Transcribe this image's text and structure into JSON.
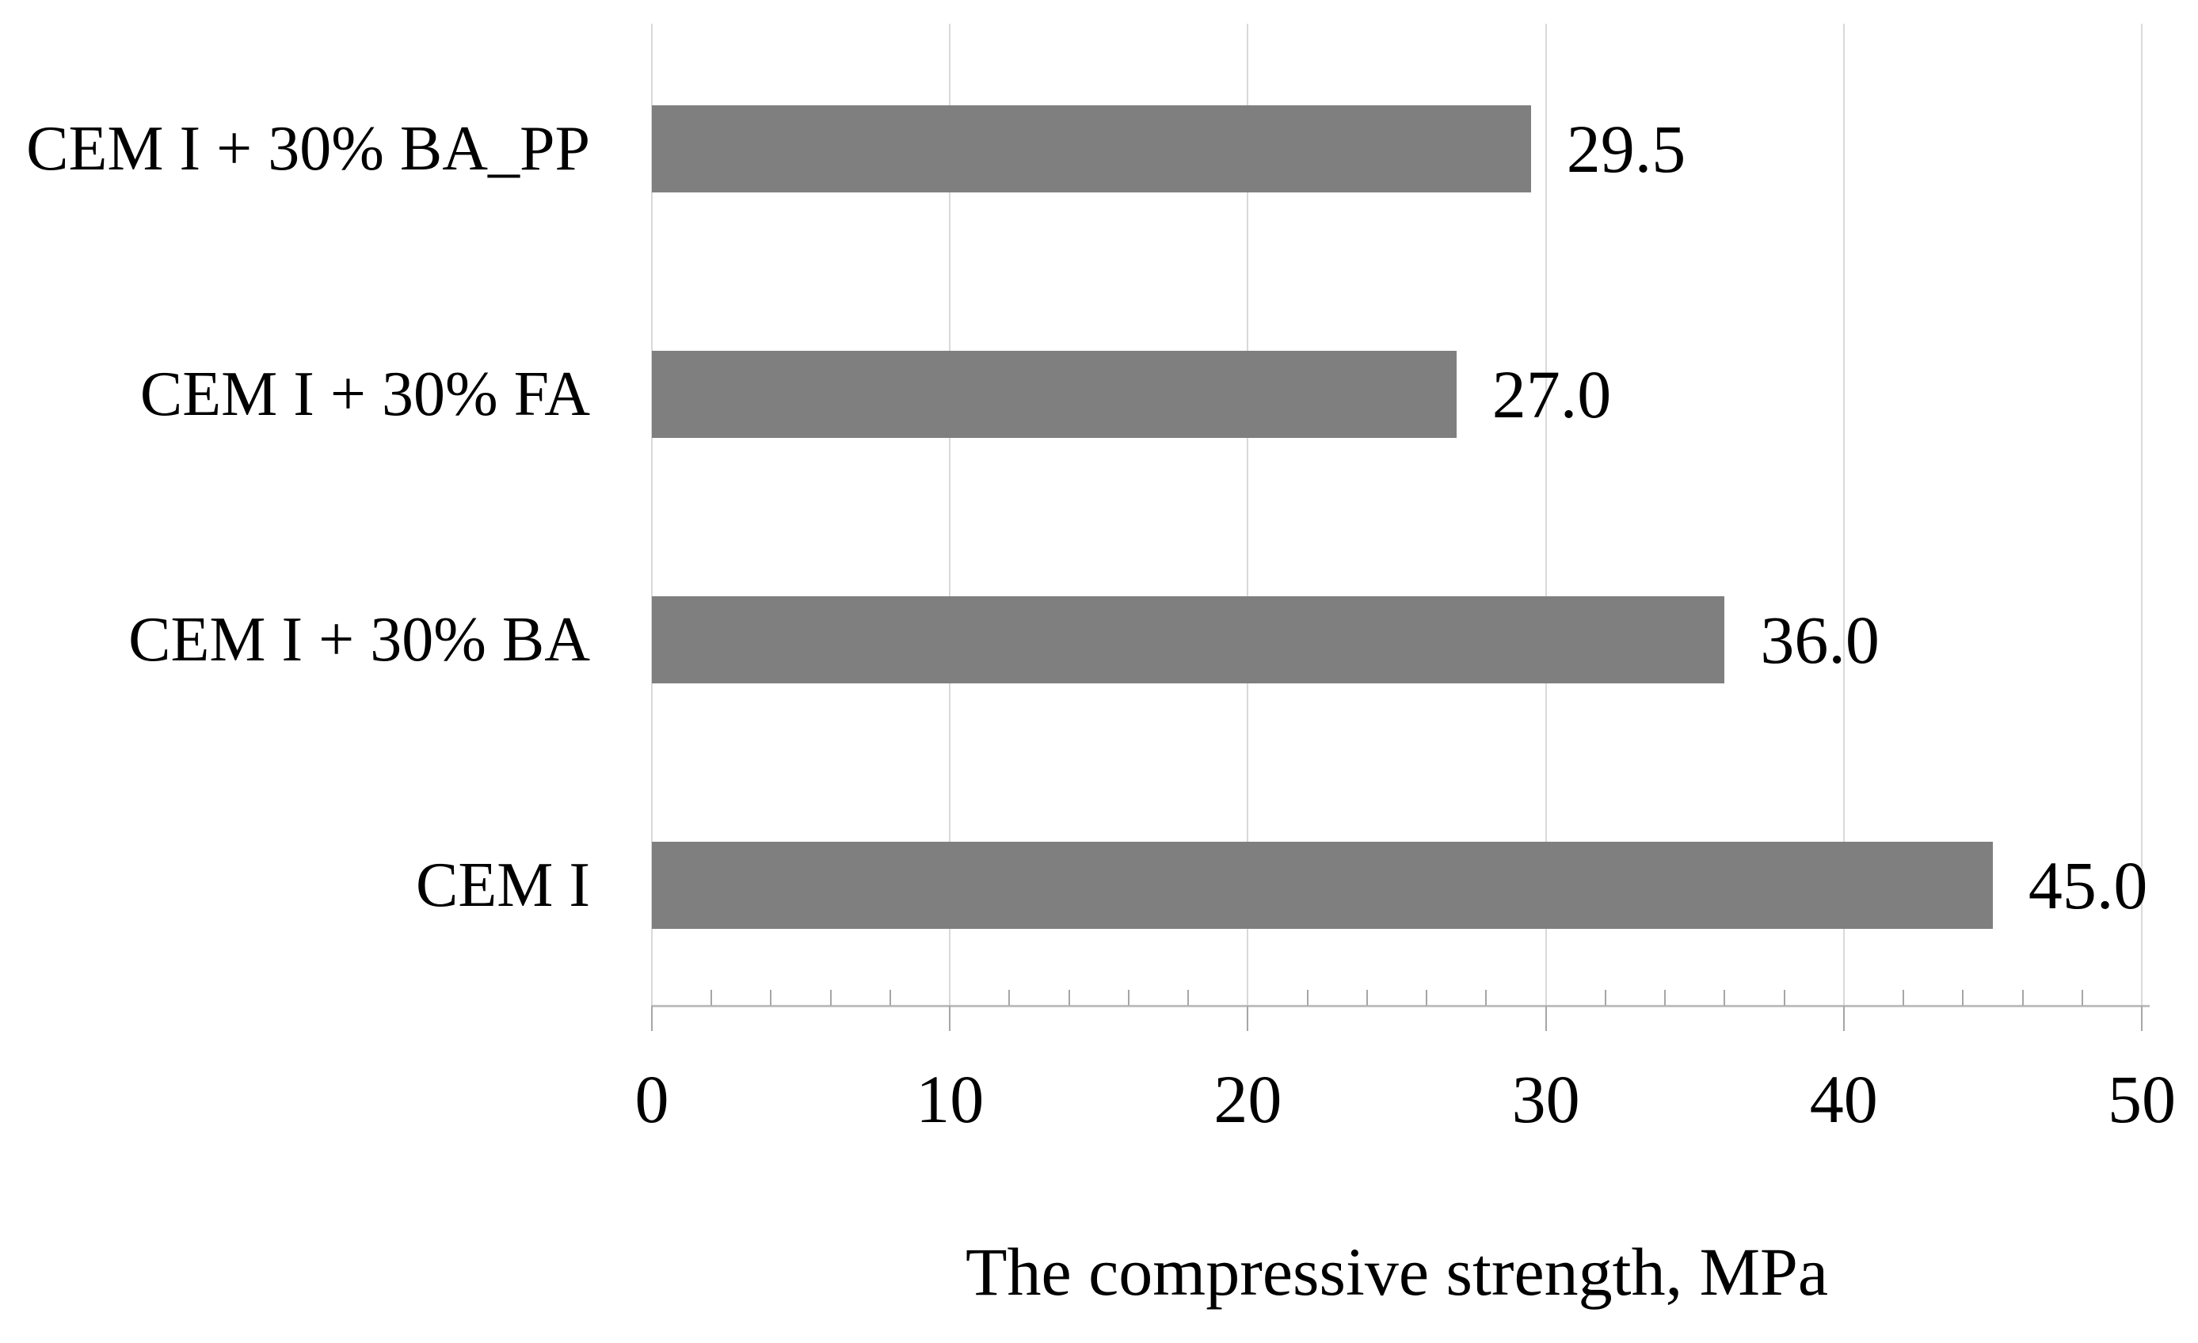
{
  "chart_data": {
    "type": "bar",
    "orientation": "horizontal",
    "title": "",
    "xlabel": "The compressive strength, MPa",
    "ylabel": "",
    "categories": [
      "CEM I + 30% BA_PP",
      "CEM I + 30% FA",
      "CEM I + 30% BA",
      "CEM I"
    ],
    "values": [
      29.5,
      27.0,
      36.0,
      45.0
    ],
    "data_labels": [
      "29.5",
      "27.0",
      "36.0",
      "45.0"
    ],
    "xlim": [
      0,
      50
    ],
    "x_major_ticks": [
      0,
      10,
      20,
      30,
      40,
      50
    ],
    "x_tick_labels": [
      "0",
      "10",
      "20",
      "30",
      "40",
      "50"
    ],
    "x_minor_tick_step": 2,
    "grid": "vertical major gridlines on",
    "legend": "none",
    "colors": {
      "bar": "#7f7f7f",
      "gridline": "#d9d9d9",
      "axis_line": "#bfbfbf",
      "tick": "#a6a6a6",
      "text": "#000000"
    }
  }
}
